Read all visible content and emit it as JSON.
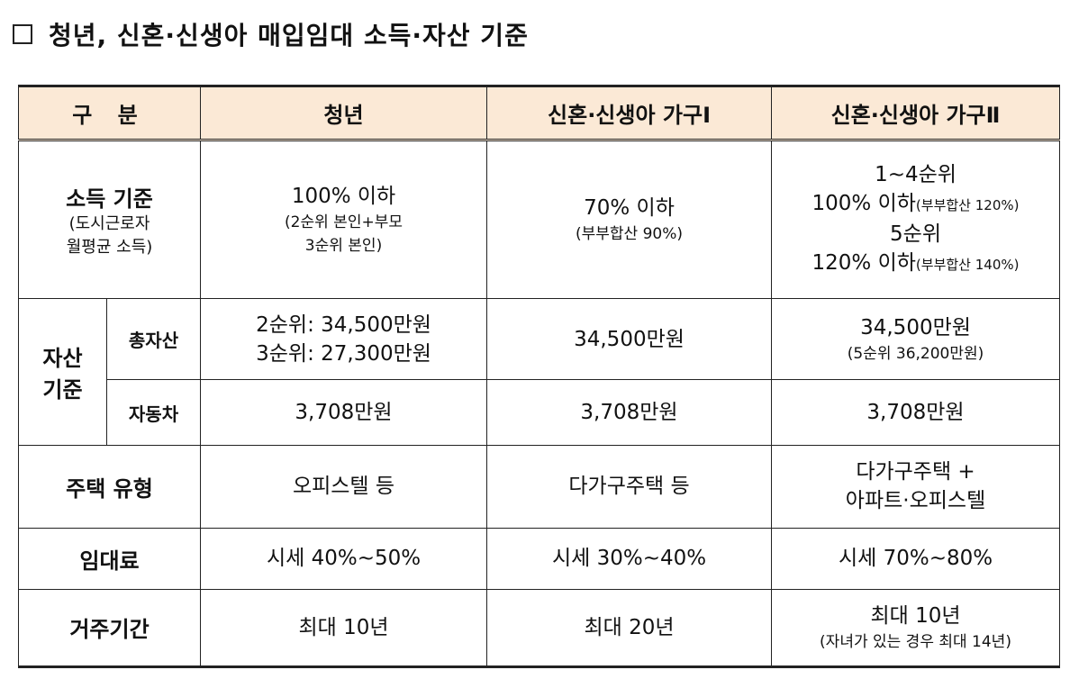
{
  "title": "청년, 신혼·신생아 매입임대 소득·자산 기준",
  "header": {
    "category": "구 분",
    "youth": "청년",
    "newlywed1": "신혼·신생아 가구Ⅰ",
    "newlywed2": "신혼·신생아 가구Ⅱ"
  },
  "rows": {
    "income": {
      "label": "소득 기준",
      "label_sub1": "(도시근로자",
      "label_sub2": "월평균 소득)",
      "youth_main": "100% 이하",
      "youth_sub1": "(2순위 본인+부모",
      "youth_sub2": "3순위 본인)",
      "nw1_main": "70% 이하",
      "nw1_sub": "(부부합산 90%)",
      "nw2_line1": "1~4순위",
      "nw2_line2_main": "100% 이하",
      "nw2_line2_sub": "(부부합산 120%)",
      "nw2_line3": "5순위",
      "nw2_line4_main": "120% 이하",
      "nw2_line4_sub": "(부부합산 140%)"
    },
    "asset": {
      "label1": "자산",
      "label2": "기준",
      "total_label": "총자산",
      "total_youth1": "2순위: 34,500만원",
      "total_youth2": "3순위: 27,300만원",
      "total_nw1": "34,500만원",
      "total_nw2_main": "34,500만원",
      "total_nw2_sub": "(5순위 36,200만원)",
      "car_label": "자동차",
      "car_youth": "3,708만원",
      "car_nw1": "3,708만원",
      "car_nw2": "3,708만원"
    },
    "housing": {
      "label": "주택 유형",
      "youth": "오피스텔 등",
      "nw1": "다가구주택 등",
      "nw2_line1": "다가구주택 +",
      "nw2_line2": "아파트·오피스텔"
    },
    "rent": {
      "label": "임대료",
      "youth": "시세 40%~50%",
      "nw1": "시세 30%~40%",
      "nw2": "시세 70%~80%"
    },
    "period": {
      "label": "거주기간",
      "youth": "최대 10년",
      "nw1": "최대 20년",
      "nw2_main": "최대 10년",
      "nw2_sub": "(자녀가 있는 경우 최대 14년)"
    }
  }
}
